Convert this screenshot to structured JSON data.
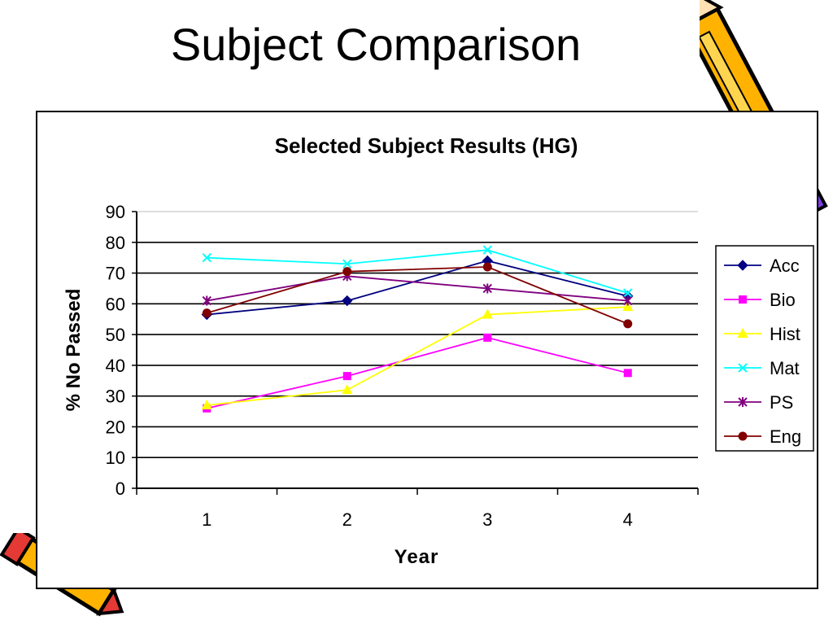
{
  "slide": {
    "title": "Subject Comparison"
  },
  "chart_data": {
    "type": "line",
    "title": "Selected Subject Results (HG)",
    "xlabel": "Year",
    "ylabel": "% No Passed",
    "x": [
      1,
      2,
      3,
      4
    ],
    "ylim": [
      0,
      90
    ],
    "yticks": [
      0,
      10,
      20,
      30,
      40,
      50,
      60,
      70,
      80,
      90
    ],
    "grid": true,
    "legend": "right",
    "series": [
      {
        "name": "Acc",
        "color": "#000080",
        "marker": "diamond",
        "values": [
          56.5,
          61,
          74,
          62.5
        ]
      },
      {
        "name": "Bio",
        "color": "#FF00FF",
        "marker": "square",
        "values": [
          26,
          36.5,
          49,
          37.5
        ]
      },
      {
        "name": "Hist",
        "color": "#FFFF00",
        "marker": "triangle",
        "values": [
          27,
          32,
          56.5,
          59
        ]
      },
      {
        "name": "Mat",
        "color": "#00FFFF",
        "marker": "x",
        "values": [
          75,
          73,
          77.5,
          63.5
        ]
      },
      {
        "name": "PS",
        "color": "#800080",
        "marker": "star",
        "values": [
          61,
          69,
          65,
          61
        ]
      },
      {
        "name": "Eng",
        "color": "#800000",
        "marker": "circle",
        "values": [
          57,
          70.5,
          72,
          53.5
        ]
      }
    ]
  }
}
